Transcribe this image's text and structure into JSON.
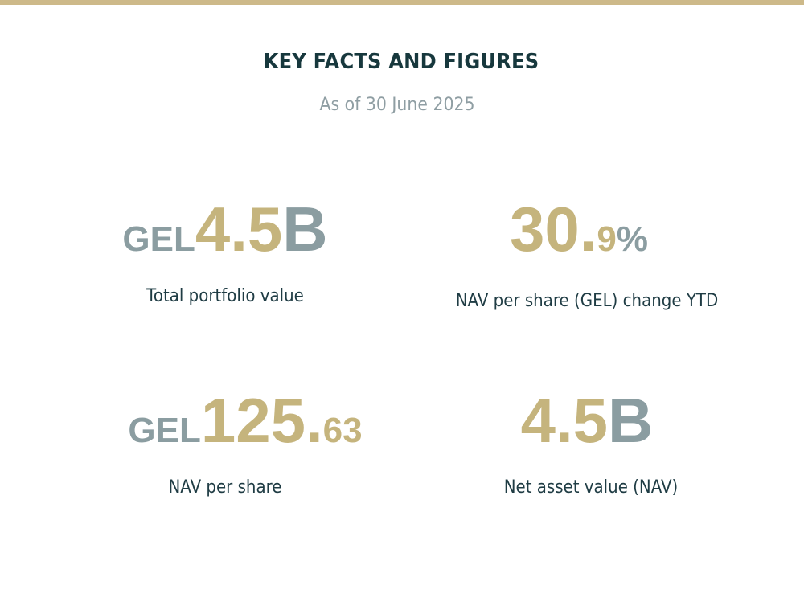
{
  "header": {
    "title": "KEY FACTS AND FIGURES",
    "subtitle": "As of 30 June 2025"
  },
  "colors": {
    "accent_gold": "#c5b47d",
    "muted_gray": "#8b9da1",
    "title_dark": "#17383d",
    "top_bar": "#cdb989"
  },
  "figures": [
    {
      "prefix": "GEL",
      "value_main": "4.5",
      "value_suffix": "B",
      "label": "Total portfolio value"
    },
    {
      "value_main": "30.",
      "value_decimal": "9",
      "value_suffix": "%",
      "label": "NAV per share (GEL) change YTD"
    },
    {
      "prefix": "GEL",
      "value_main": "125.",
      "value_decimal": "63",
      "label": "NAV per share"
    },
    {
      "value_main": "4.5",
      "value_suffix": "B",
      "label": "Net asset value (NAV)"
    }
  ]
}
